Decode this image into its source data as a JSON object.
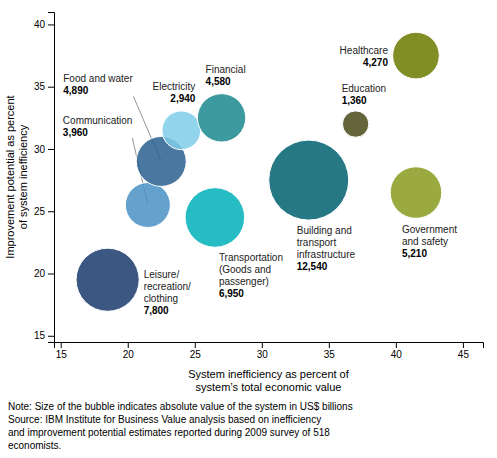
{
  "chart_data": {
    "type": "bubble",
    "categories": [
      "Leisure/\nrecreation/\nclothing",
      "Communication",
      "Food and water",
      "Electricity",
      "Financial",
      "Transportation\n(Goods and\npassenger)",
      "Building and\ntransport\ninfrastructure",
      "Education",
      "Government\nand safety",
      "Healthcare"
    ],
    "x": [
      18.5,
      21.5,
      22.5,
      24.0,
      27.0,
      26.5,
      33.5,
      37.0,
      41.5,
      41.5
    ],
    "values": [
      19.5,
      25.5,
      29.0,
      31.5,
      32.5,
      24.5,
      27.5,
      32.0,
      26.5,
      37.5
    ],
    "sizes": [
      7800,
      3960,
      4890,
      2940,
      4580,
      6950,
      12540,
      1360,
      5210,
      4270
    ],
    "size_labels": [
      "7,800",
      "3,960",
      "4,890",
      "2,940",
      "4,580",
      "6,950",
      "12,540",
      "1,360",
      "5,210",
      "4,270"
    ],
    "colors": [
      "#1a3a6b",
      "#4a90c4",
      "#2a5f8f",
      "#7ecce8",
      "#1b8a8f",
      "#00b0b8",
      "#00606e",
      "#4a4a1a",
      "#8a9a20",
      "#6b7a00"
    ],
    "xlim": [
      14.5,
      46.5
    ],
    "ylim": [
      14.5,
      41.0
    ],
    "xticks": [
      15,
      20,
      25,
      30,
      35,
      40,
      45
    ],
    "yticks": [
      15,
      20,
      25,
      30,
      35,
      40
    ],
    "xlabel": "System inefficiency as percent of\nsystem’s total economic value",
    "ylabel": "Improvement potential as percent\nof system inefficiency",
    "note": "Note: Size of the bubble indicates absolute value of the system in US$ billions\nSource: IBM Institute for Business Value analysis based on inefficiency\nand improvement potential estimates reported during 2009 survey of 518\neconomists."
  }
}
